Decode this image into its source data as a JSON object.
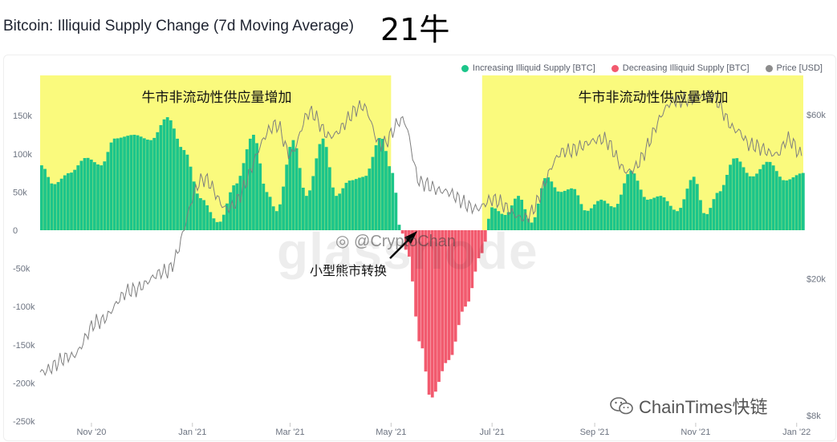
{
  "header": {
    "title": "Bitcoin: Illiquid Supply Change (7d Moving Average)",
    "badge": "21牛"
  },
  "legend": [
    {
      "label": "Increasing Illiquid Supply [BTC]",
      "color": "#1cc58a"
    },
    {
      "label": "Decreasing Illiquid Supply [BTC]",
      "color": "#f25a6e"
    },
    {
      "label": "Price [USD]",
      "color": "#8c8c8c"
    }
  ],
  "annotations": {
    "bull_left": "牛市非流动性供应量增加",
    "bull_right": "牛市非流动性供应量增加",
    "bear": "小型熊市转换"
  },
  "watermark": {
    "brand": "glassnode",
    "handle": "@CryptoChan"
  },
  "footer": {
    "brand": "ChainTimes快链"
  },
  "chart_data": {
    "type": "bar",
    "title": "Bitcoin: Illiquid Supply Change (7d Moving Average)",
    "x_tick_labels": [
      "Nov '20",
      "Jan '21",
      "Mar '21",
      "May '21",
      "Jul '21",
      "Sep '21",
      "Nov '21",
      "Jan '22"
    ],
    "y_left": {
      "ticks": [
        -250000,
        -200000,
        -150000,
        -100000,
        -50000,
        0,
        50000,
        100000,
        150000
      ],
      "tick_labels": [
        "-250k",
        "-200k",
        "-150k",
        "-100k",
        "-50k",
        "0",
        "50k",
        "100k",
        "150k"
      ],
      "range": [
        -250000,
        180000
      ]
    },
    "y_right": {
      "scale": "log",
      "tick_labels": [
        "$60k",
        "$20k",
        "$8k"
      ],
      "ticks": [
        60000,
        20000,
        8000
      ]
    },
    "grid": false,
    "x_start": "2020-10-01",
    "x_end": "2022-01-05",
    "highlight_periods": [
      {
        "start": "2020-10-01",
        "end": "2021-05-01",
        "color": "#fafa7d"
      },
      {
        "start": "2021-06-25",
        "end": "2022-01-05",
        "color": "#fafa7d"
      }
    ],
    "illiquid_supply_change_keypoints": [
      [
        "2020-10-01",
        85000
      ],
      [
        "2020-10-08",
        60000
      ],
      [
        "2020-10-18",
        75000
      ],
      [
        "2020-10-28",
        95000
      ],
      [
        "2020-11-06",
        85000
      ],
      [
        "2020-11-14",
        120000
      ],
      [
        "2020-11-26",
        125000
      ],
      [
        "2020-12-06",
        118000
      ],
      [
        "2020-12-16",
        148000
      ],
      [
        "2020-12-26",
        105000
      ],
      [
        "2021-01-05",
        42000
      ],
      [
        "2021-01-16",
        10000
      ],
      [
        "2021-01-26",
        60000
      ],
      [
        "2021-02-06",
        125000
      ],
      [
        "2021-02-14",
        50000
      ],
      [
        "2021-02-20",
        25000
      ],
      [
        "2021-03-02",
        118000
      ],
      [
        "2021-03-10",
        45000
      ],
      [
        "2021-03-20",
        120000
      ],
      [
        "2021-03-28",
        45000
      ],
      [
        "2021-04-05",
        65000
      ],
      [
        "2021-04-14",
        70000
      ],
      [
        "2021-04-24",
        122000
      ],
      [
        "2021-05-01",
        75000
      ],
      [
        "2021-05-06",
        0
      ],
      [
        "2021-05-10",
        -30000
      ],
      [
        "2021-05-18",
        -150000
      ],
      [
        "2021-05-24",
        -220000
      ],
      [
        "2021-06-04",
        -170000
      ],
      [
        "2021-06-14",
        -100000
      ],
      [
        "2021-06-24",
        -30000
      ],
      [
        "2021-06-30",
        30000
      ],
      [
        "2021-07-08",
        20000
      ],
      [
        "2021-07-16",
        45000
      ],
      [
        "2021-07-24",
        10000
      ],
      [
        "2021-08-02",
        70000
      ],
      [
        "2021-08-10",
        50000
      ],
      [
        "2021-08-18",
        55000
      ],
      [
        "2021-08-26",
        25000
      ],
      [
        "2021-09-04",
        40000
      ],
      [
        "2021-09-12",
        30000
      ],
      [
        "2021-09-22",
        78000
      ],
      [
        "2021-10-02",
        40000
      ],
      [
        "2021-10-10",
        45000
      ],
      [
        "2021-10-20",
        25000
      ],
      [
        "2021-10-30",
        70000
      ],
      [
        "2021-11-06",
        20000
      ],
      [
        "2021-11-14",
        50000
      ],
      [
        "2021-11-24",
        95000
      ],
      [
        "2021-12-04",
        70000
      ],
      [
        "2021-12-14",
        90000
      ],
      [
        "2021-12-24",
        65000
      ],
      [
        "2022-01-04",
        75000
      ]
    ],
    "price_keypoints": [
      [
        "2020-10-01",
        10700
      ],
      [
        "2020-10-20",
        11900
      ],
      [
        "2020-11-05",
        15000
      ],
      [
        "2020-11-25",
        18500
      ],
      [
        "2020-12-16",
        21000
      ],
      [
        "2021-01-08",
        39000
      ],
      [
        "2021-01-22",
        32000
      ],
      [
        "2021-02-21",
        56000
      ],
      [
        "2021-03-01",
        46000
      ],
      [
        "2021-03-13",
        61000
      ],
      [
        "2021-03-25",
        52000
      ],
      [
        "2021-04-14",
        63500
      ],
      [
        "2021-04-25",
        49000
      ],
      [
        "2021-05-08",
        58000
      ],
      [
        "2021-05-19",
        38000
      ],
      [
        "2021-06-01",
        36000
      ],
      [
        "2021-06-22",
        32000
      ],
      [
        "2021-07-01",
        34000
      ],
      [
        "2021-07-20",
        30000
      ],
      [
        "2021-08-14",
        47000
      ],
      [
        "2021-09-06",
        51000
      ],
      [
        "2021-09-21",
        41000
      ],
      [
        "2021-10-20",
        66000
      ],
      [
        "2021-11-10",
        68000
      ],
      [
        "2021-11-26",
        54000
      ],
      [
        "2021-12-04",
        49000
      ],
      [
        "2021-12-20",
        46000
      ],
      [
        "2021-12-27",
        51000
      ],
      [
        "2022-01-04",
        46000
      ]
    ]
  }
}
